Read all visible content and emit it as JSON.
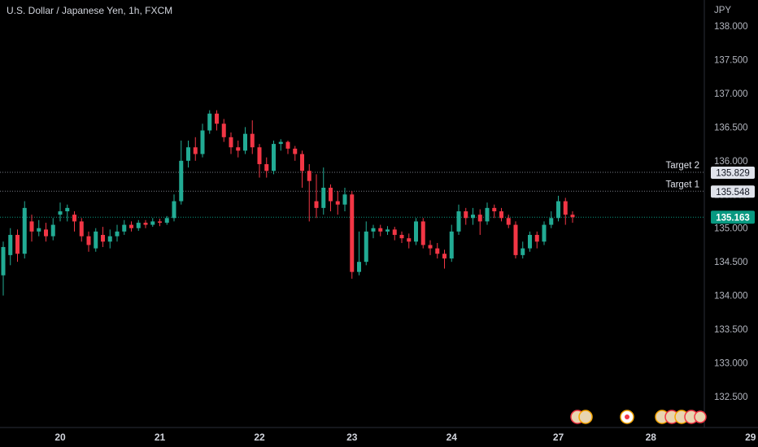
{
  "header": {
    "symbol_title": "U.S. Dollar / Japanese Yen, 1h, FXCM",
    "currency": "JPY"
  },
  "colors": {
    "up": "#26a69a",
    "up_bright": "#22ab94",
    "down": "#f23645",
    "bg": "#000000",
    "axis_line": "#2a2e39",
    "dotted_line": "#787b86",
    "current_price_bg": "#089981"
  },
  "chart_data": {
    "type": "candlestick",
    "ylim": [
      132.0,
      138.2
    ],
    "y_ticks": [
      "138.000",
      "137.500",
      "137.000",
      "136.500",
      "136.000",
      "135.500",
      "135.000",
      "134.500",
      "134.000",
      "133.500",
      "133.000",
      "132.500"
    ],
    "y_tick_values": [
      138.0,
      137.5,
      137.0,
      136.5,
      136.0,
      135.5,
      135.0,
      134.5,
      134.0,
      133.5,
      133.0,
      132.5
    ],
    "x_ticks": [
      "20",
      "21",
      "22",
      "23",
      "24",
      "27",
      "28",
      "29"
    ],
    "x_tick_index": [
      8,
      22,
      36,
      49,
      63,
      78,
      91,
      105
    ],
    "price_lines": [
      {
        "label": "Target 2",
        "value": 135.829,
        "text": "135.829"
      },
      {
        "label": "Target 1",
        "value": 135.548,
        "text": "135.548"
      }
    ],
    "current_price": {
      "value": 135.163,
      "text": "135.163"
    },
    "candles": [
      [
        134.3,
        134.72,
        134.8,
        134.0
      ],
      [
        134.6,
        134.9,
        135.0,
        134.45
      ],
      [
        134.9,
        134.62,
        134.98,
        134.5
      ],
      [
        134.62,
        135.3,
        135.4,
        134.55
      ],
      [
        135.1,
        134.95,
        135.2,
        134.8
      ],
      [
        134.95,
        135.0,
        135.12,
        134.88
      ],
      [
        134.98,
        134.88,
        135.08,
        134.8
      ],
      [
        134.88,
        135.05,
        135.15,
        134.82
      ],
      [
        135.2,
        135.25,
        135.38,
        135.1
      ],
      [
        135.25,
        135.3,
        135.35,
        135.1
      ],
      [
        135.2,
        135.1,
        135.25,
        134.95
      ],
      [
        135.1,
        134.88,
        135.15,
        134.8
      ],
      [
        134.88,
        134.75,
        134.95,
        134.65
      ],
      [
        134.7,
        134.95,
        135.0,
        134.65
      ],
      [
        134.9,
        134.8,
        135.02,
        134.72
      ],
      [
        134.8,
        134.88,
        134.98,
        134.7
      ],
      [
        134.88,
        134.95,
        135.05,
        134.8
      ],
      [
        134.95,
        135.05,
        135.12,
        134.9
      ],
      [
        135.05,
        135.0,
        135.1,
        134.95
      ],
      [
        135.0,
        135.08,
        135.12,
        134.96
      ],
      [
        135.08,
        135.05,
        135.12,
        135.0
      ],
      [
        135.05,
        135.1,
        135.15,
        135.02
      ],
      [
        135.1,
        135.08,
        135.14,
        135.03
      ],
      [
        135.08,
        135.15,
        135.18,
        135.05
      ],
      [
        135.15,
        135.4,
        135.5,
        135.1
      ],
      [
        135.4,
        136.0,
        136.3,
        135.35
      ],
      [
        136.0,
        136.2,
        136.3,
        135.9
      ],
      [
        136.2,
        136.1,
        136.35,
        136.0
      ],
      [
        136.1,
        136.45,
        136.55,
        136.05
      ],
      [
        136.45,
        136.7,
        136.75,
        136.4
      ],
      [
        136.7,
        136.55,
        136.75,
        136.45
      ],
      [
        136.55,
        136.35,
        136.62,
        136.28
      ],
      [
        136.35,
        136.2,
        136.42,
        136.1
      ],
      [
        136.2,
        136.15,
        136.3,
        136.05
      ],
      [
        136.15,
        136.4,
        136.5,
        136.1
      ],
      [
        136.4,
        136.2,
        136.6,
        136.1
      ],
      [
        136.2,
        135.95,
        136.25,
        135.75
      ],
      [
        135.95,
        135.85,
        136.05,
        135.75
      ],
      [
        135.85,
        136.25,
        136.3,
        135.8
      ],
      [
        136.25,
        136.28,
        136.32,
        136.15
      ],
      [
        136.28,
        136.18,
        136.3,
        136.1
      ],
      [
        136.18,
        136.1,
        136.22,
        136.0
      ],
      [
        136.1,
        135.85,
        136.15,
        135.6
      ],
      [
        135.85,
        135.7,
        135.95,
        135.1
      ],
      [
        135.4,
        135.3,
        135.8,
        135.15
      ],
      [
        135.3,
        135.6,
        135.9,
        135.2
      ],
      [
        135.6,
        135.4,
        135.65,
        135.25
      ],
      [
        135.4,
        135.35,
        135.55,
        135.2
      ],
      [
        135.35,
        135.5,
        135.6,
        135.25
      ],
      [
        135.5,
        134.35,
        135.55,
        134.25
      ],
      [
        134.35,
        134.5,
        134.95,
        134.3
      ],
      [
        134.5,
        134.95,
        135.1,
        134.45
      ],
      [
        134.95,
        135.0,
        135.05,
        134.85
      ],
      [
        135.0,
        134.95,
        135.05,
        134.88
      ],
      [
        134.95,
        134.98,
        135.03,
        134.9
      ],
      [
        134.98,
        134.9,
        135.02,
        134.82
      ],
      [
        134.9,
        134.85,
        134.95,
        134.78
      ],
      [
        134.85,
        134.8,
        134.92,
        134.7
      ],
      [
        134.8,
        135.1,
        135.15,
        134.75
      ],
      [
        135.1,
        134.75,
        135.15,
        134.7
      ],
      [
        134.75,
        134.7,
        134.82,
        134.6
      ],
      [
        134.7,
        134.62,
        134.78,
        134.55
      ],
      [
        134.62,
        134.55,
        134.68,
        134.4
      ],
      [
        134.55,
        134.95,
        135.05,
        134.5
      ],
      [
        134.95,
        135.25,
        135.35,
        134.9
      ],
      [
        135.25,
        135.15,
        135.3,
        135.05
      ],
      [
        135.15,
        135.2,
        135.3,
        135.05
      ],
      [
        135.2,
        135.1,
        135.28,
        134.9
      ],
      [
        135.1,
        135.3,
        135.38,
        135.05
      ],
      [
        135.3,
        135.25,
        135.35,
        135.15
      ],
      [
        135.25,
        135.15,
        135.3,
        135.1
      ],
      [
        135.15,
        135.05,
        135.2,
        135.0
      ],
      [
        135.05,
        134.6,
        135.1,
        134.55
      ],
      [
        134.6,
        134.7,
        134.8,
        134.55
      ],
      [
        134.7,
        134.9,
        134.95,
        134.65
      ],
      [
        134.9,
        134.8,
        134.95,
        134.7
      ],
      [
        134.8,
        135.05,
        135.1,
        134.75
      ],
      [
        135.05,
        135.15,
        135.25,
        135.0
      ],
      [
        135.15,
        135.4,
        135.48,
        135.1
      ],
      [
        135.4,
        135.2,
        135.45,
        135.05
      ],
      [
        135.2,
        135.163,
        135.25,
        135.08
      ]
    ]
  }
}
